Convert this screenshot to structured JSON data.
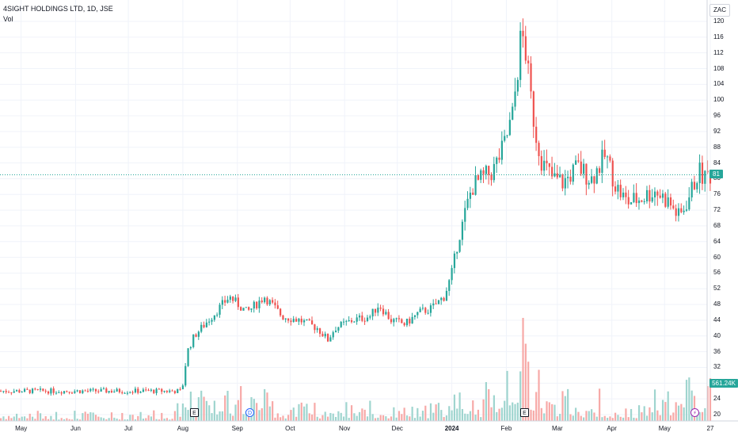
{
  "legend": {
    "title": "4SIGHT HOLDINGS LTD, 1D, JSE",
    "vol_label": "Vol"
  },
  "currency": "ZAC",
  "last_price_badge": "81",
  "last_volume_badge": "561.24K",
  "colors": {
    "up": "#26a69a",
    "down": "#ef5350",
    "vol_up": "#9fd5cf",
    "vol_down": "#f7a9a7",
    "grid": "#f0f3fa"
  },
  "markers": [
    {
      "type": "earnings-icon",
      "text": "E"
    },
    {
      "type": "dividend-icon",
      "text": "D"
    },
    {
      "type": "earnings-icon",
      "text": "E"
    },
    {
      "type": "split-icon",
      "text": "⚡"
    }
  ],
  "chart_data": {
    "type": "candlestick",
    "y_ticks": [
      20,
      24,
      28,
      32,
      36,
      40,
      44,
      48,
      52,
      56,
      60,
      64,
      68,
      72,
      76,
      80,
      84,
      88,
      92,
      96,
      100,
      104,
      108,
      112,
      116,
      120
    ],
    "ylim": [
      18,
      121
    ],
    "last_price": 81,
    "x_ticks": [
      {
        "label": "May",
        "day": 12
      },
      {
        "label": "Jun",
        "day": 43
      },
      {
        "label": "Jul",
        "day": 73
      },
      {
        "label": "Aug",
        "day": 104
      },
      {
        "label": "Sep",
        "day": 135
      },
      {
        "label": "Oct",
        "day": 165
      },
      {
        "label": "Nov",
        "day": 196
      },
      {
        "label": "Dec",
        "day": 226
      },
      {
        "label": "2024",
        "day": 257,
        "bold": true
      },
      {
        "label": "Feb",
        "day": 288
      },
      {
        "label": "Mar",
        "day": 317
      },
      {
        "label": "Apr",
        "day": 348
      },
      {
        "label": "May",
        "day": 378
      },
      {
        "label": "27",
        "day": 404
      }
    ],
    "key_points": [
      [
        0,
        26
      ],
      [
        60,
        26
      ],
      [
        103,
        26
      ],
      [
        106,
        36
      ],
      [
        110,
        40
      ],
      [
        118,
        44
      ],
      [
        124,
        47
      ],
      [
        130,
        50
      ],
      [
        140,
        46
      ],
      [
        150,
        50
      ],
      [
        160,
        45
      ],
      [
        170,
        44
      ],
      [
        180,
        42
      ],
      [
        186,
        39
      ],
      [
        190,
        42
      ],
      [
        200,
        44
      ],
      [
        210,
        45
      ],
      [
        215,
        48
      ],
      [
        222,
        44
      ],
      [
        230,
        43
      ],
      [
        238,
        46
      ],
      [
        245,
        47
      ],
      [
        252,
        50
      ],
      [
        256,
        55
      ],
      [
        260,
        64
      ],
      [
        264,
        71
      ],
      [
        268,
        78
      ],
      [
        274,
        80
      ],
      [
        280,
        82
      ],
      [
        286,
        88
      ],
      [
        291,
        96
      ],
      [
        294,
        108
      ],
      [
        296,
        117
      ],
      [
        298,
        114
      ],
      [
        301,
        102
      ],
      [
        304,
        92
      ],
      [
        308,
        84
      ],
      [
        314,
        80
      ],
      [
        320,
        79
      ],
      [
        328,
        83
      ],
      [
        336,
        80
      ],
      [
        344,
        86
      ],
      [
        350,
        78
      ],
      [
        356,
        74
      ],
      [
        364,
        75
      ],
      [
        372,
        77
      ],
      [
        380,
        74
      ],
      [
        386,
        70
      ],
      [
        392,
        76
      ],
      [
        397,
        82
      ],
      [
        400,
        80
      ],
      [
        402,
        81
      ]
    ],
    "volume_profile": [
      [
        0,
        0.3
      ],
      [
        100,
        0.3
      ],
      [
        106,
        1.8
      ],
      [
        115,
        1.5
      ],
      [
        130,
        1.2
      ],
      [
        160,
        0.5
      ],
      [
        200,
        0.6
      ],
      [
        240,
        0.5
      ],
      [
        258,
        1.0
      ],
      [
        268,
        0.8
      ],
      [
        285,
        1.0
      ],
      [
        295,
        4.0
      ],
      [
        302,
        2.2
      ],
      [
        310,
        1.0
      ],
      [
        330,
        0.8
      ],
      [
        360,
        0.6
      ],
      [
        385,
        1.0
      ],
      [
        395,
        1.8
      ],
      [
        402,
        1.6
      ]
    ]
  }
}
